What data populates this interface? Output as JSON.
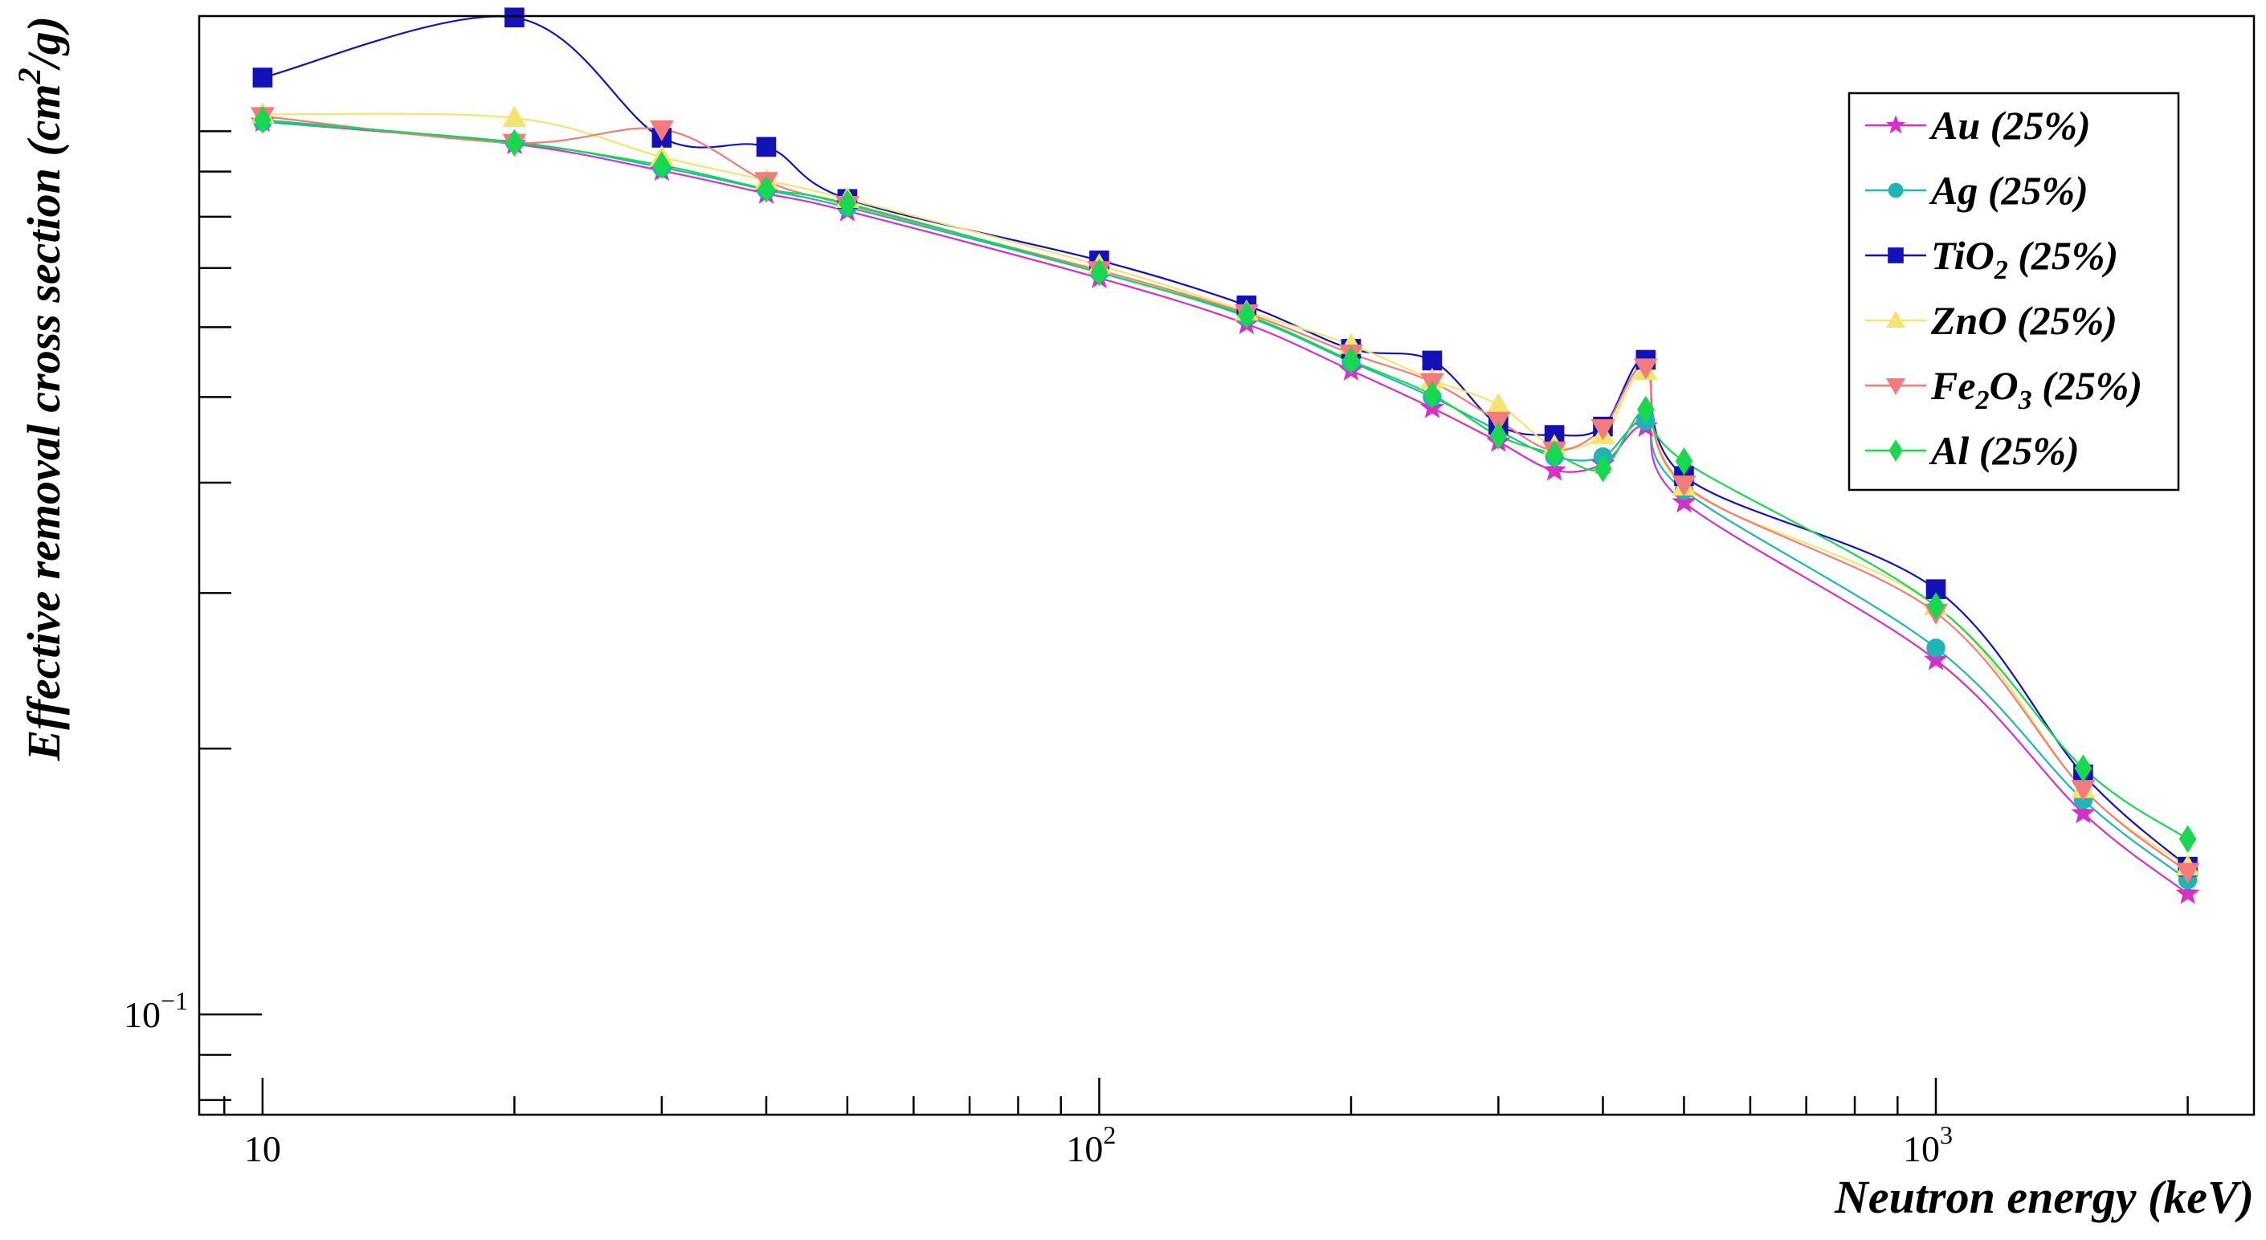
{
  "chart_data": {
    "type": "line",
    "title": "",
    "xlabel": "Neutron energy (keV)",
    "ylabel": "Effective removal cross section (cm2/g)",
    "xscale": "log",
    "yscale": "log",
    "xlim": [
      8.4,
      2400
    ],
    "ylim": [
      0.077,
      1.35
    ],
    "grid": false,
    "legend_position": "top-right",
    "x": [
      10,
      20,
      30,
      40,
      50,
      100,
      150,
      200,
      250,
      300,
      350,
      400,
      450,
      500,
      1000,
      1500,
      2000
    ],
    "x_ticks": [
      {
        "value": 10,
        "label": "10"
      },
      {
        "value": 100,
        "label": "10",
        "exp": "2"
      },
      {
        "value": 1000,
        "label": "10",
        "exp": "3"
      }
    ],
    "y_ticks": [
      {
        "value": 0.1,
        "label": "10",
        "exp": "−1"
      }
    ],
    "series": [
      {
        "name": "Au (25%)",
        "legend_main": "Au",
        "legend_rest": " (25%)",
        "color": "#d631c7",
        "marker": "star",
        "values": [
          1.025,
          0.967,
          0.902,
          0.85,
          0.812,
          0.682,
          0.605,
          0.536,
          0.486,
          0.445,
          0.413,
          0.42,
          0.463,
          0.38,
          0.252,
          0.169,
          0.137
        ]
      },
      {
        "name": "Ag (25%)",
        "legend_main": "Ag",
        "legend_rest": " (25%)",
        "color": "#1fb5b5",
        "marker": "circle",
        "values": [
          1.025,
          0.972,
          0.91,
          0.858,
          0.82,
          0.692,
          0.617,
          0.548,
          0.5,
          0.458,
          0.428,
          0.428,
          0.47,
          0.392,
          0.26,
          0.175,
          0.142
        ]
      },
      {
        "name": "TiO2 (25%)",
        "legend_main": "TiO",
        "legend_sub": "2",
        "legend_rest": " (25%)",
        "color": "#1212b8",
        "marker": "square",
        "values": [
          1.15,
          1.345,
          0.983,
          0.96,
          0.838,
          0.714,
          0.635,
          0.567,
          0.55,
          0.465,
          0.453,
          0.463,
          0.551,
          0.407,
          0.303,
          0.187,
          0.147
        ]
      },
      {
        "name": "ZnO (25%)",
        "legend_main": "ZnO",
        "legend_rest": " (25%)",
        "color": "#f2e46e",
        "marker": "triangle-up",
        "values": [
          1.045,
          1.035,
          0.935,
          0.88,
          0.838,
          0.705,
          0.625,
          0.573,
          0.523,
          0.49,
          0.44,
          0.453,
          0.535,
          0.396,
          0.29,
          0.18,
          0.147
        ]
      },
      {
        "name": "Fe2O3 (25%)",
        "legend_main": "Fe",
        "legend_sub": "2",
        "legend_main2": "O",
        "legend_sub2": "3",
        "legend_rest": " (25%)",
        "color": "#f37b7b",
        "marker": "triangle-down",
        "values": [
          1.04,
          0.97,
          1.005,
          0.878,
          0.825,
          0.696,
          0.622,
          0.56,
          0.52,
          0.47,
          0.435,
          0.461,
          0.54,
          0.398,
          0.285,
          0.18,
          0.145
        ]
      },
      {
        "name": "Al (25%)",
        "legend_main": "Al",
        "legend_rest": " (25%)",
        "color": "#17d84e",
        "marker": "diamond",
        "values": [
          1.03,
          0.97,
          0.915,
          0.86,
          0.828,
          0.692,
          0.619,
          0.55,
          0.503,
          0.452,
          0.431,
          0.415,
          0.484,
          0.423,
          0.29,
          0.19,
          0.158
        ]
      }
    ]
  }
}
